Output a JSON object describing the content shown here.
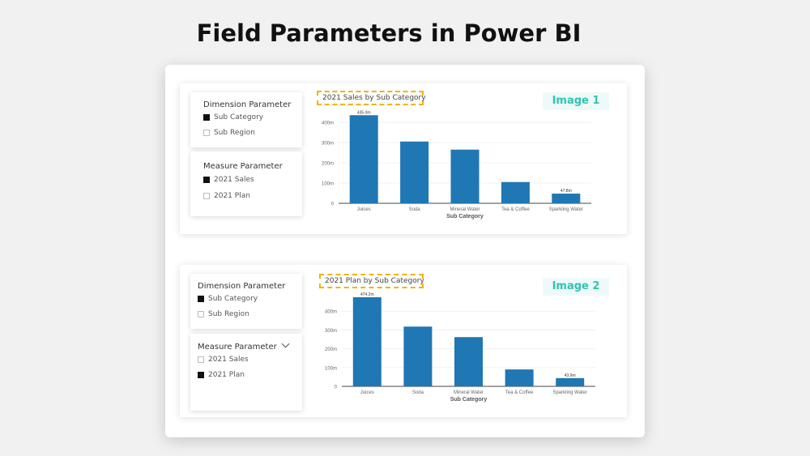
{
  "title": "Field Parameters in Power BI",
  "colors": {
    "bar": "#1f77b4",
    "highlight_border": "#f0b400",
    "image_label": "#2ec4b0"
  },
  "panels": [
    {
      "dimension_slicer": {
        "title": "Dimension Parameter",
        "options": [
          {
            "label": "Sub Category",
            "checked": true
          },
          {
            "label": "Sub Region",
            "checked": false
          }
        ]
      },
      "measure_slicer": {
        "title": "Measure Parameter",
        "options": [
          {
            "label": "2021 Sales",
            "checked": true
          },
          {
            "label": "2021 Plan",
            "checked": false
          }
        ]
      },
      "image_label": "Image 1",
      "chart_title": "2021 Sales by Sub Category"
    },
    {
      "dimension_slicer": {
        "title": "Dimension Parameter",
        "options": [
          {
            "label": "Sub Category",
            "checked": true
          },
          {
            "label": "Sub Region",
            "checked": false
          }
        ]
      },
      "measure_slicer": {
        "title": "Measure Parameter",
        "options": [
          {
            "label": "2021 Sales",
            "checked": false
          },
          {
            "label": "2021 Plan",
            "checked": true
          }
        ]
      },
      "image_label": "Image 2",
      "chart_title": "2021 Plan by Sub Category"
    }
  ],
  "chart_data": [
    {
      "type": "bar",
      "title": "2021 Sales by Sub Category",
      "xlabel": "Sub Category",
      "ylabel": "",
      "categories": [
        "Juices",
        "Soda",
        "Mineral Water",
        "Tea & Coffee",
        "Sparkling Water"
      ],
      "values": [
        435.0,
        305,
        265,
        105,
        47.8
      ],
      "data_labels": {
        "0": "435.0m",
        "4": "47.8m"
      },
      "yticks": [
        "0",
        "100m",
        "200m",
        "300m",
        "400m"
      ],
      "ytick_values": [
        0,
        100,
        200,
        300,
        400
      ],
      "ylim": [
        0,
        440
      ]
    },
    {
      "type": "bar",
      "title": "2021 Plan by Sub Category",
      "xlabel": "Sub Category",
      "ylabel": "",
      "categories": [
        "Juices",
        "Soda",
        "Mineral Water",
        "Tea & Coffee",
        "Sparkling Water"
      ],
      "values": [
        474.2,
        318,
        262,
        90,
        43.9
      ],
      "data_labels": {
        "0": "474.2m",
        "4": "43.9m"
      },
      "yticks": [
        "0",
        "100m",
        "200m",
        "300m",
        "400m"
      ],
      "ytick_values": [
        0,
        100,
        200,
        300,
        400
      ],
      "ylim": [
        0,
        474.2
      ]
    }
  ]
}
